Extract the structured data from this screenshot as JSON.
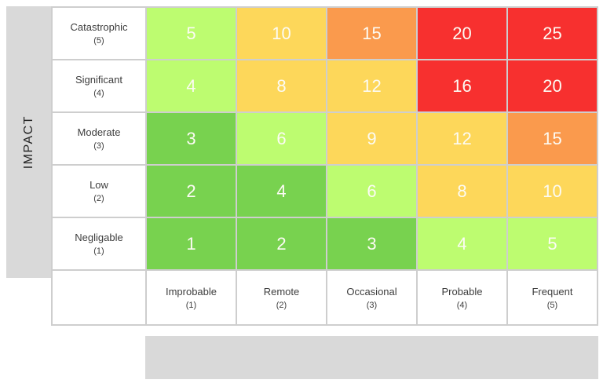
{
  "colors": {
    "green": "#78d24f",
    "light_green": "#bdfc70",
    "yellow": "#fdd75a",
    "orange": "#fa9a4d",
    "red": "#f7302f",
    "grid_line": "#cecece",
    "panel_gray": "#d9d9d9",
    "header_text": "#3d3d3d",
    "axis_text": "#262626",
    "cell_text": "#fcfbf4"
  },
  "chart_data": {
    "type": "heatmap",
    "title": "",
    "xlabel": "",
    "ylabel": "IMPACT",
    "legend": "none",
    "grid": true,
    "rows": [
      {
        "label": "Catastrophic",
        "scale": "(5)"
      },
      {
        "label": "Significant",
        "scale": "(4)"
      },
      {
        "label": "Moderate",
        "scale": "(3)"
      },
      {
        "label": "Low",
        "scale": "(2)"
      },
      {
        "label": "Negligable",
        "scale": "(1)"
      }
    ],
    "columns": [
      {
        "label": "Improbable",
        "scale": "(1)"
      },
      {
        "label": "Remote",
        "scale": "(2)"
      },
      {
        "label": "Occasional",
        "scale": "(3)"
      },
      {
        "label": "Probable",
        "scale": "(4)"
      },
      {
        "label": "Frequent",
        "scale": "(5)"
      }
    ],
    "values": [
      [
        5,
        10,
        15,
        20,
        25
      ],
      [
        4,
        8,
        12,
        16,
        20
      ],
      [
        3,
        6,
        9,
        12,
        15
      ],
      [
        2,
        4,
        6,
        8,
        10
      ],
      [
        1,
        2,
        3,
        4,
        5
      ]
    ],
    "cell_colors": [
      [
        "light_green",
        "yellow",
        "orange",
        "red",
        "red"
      ],
      [
        "light_green",
        "yellow",
        "yellow",
        "red",
        "red"
      ],
      [
        "green",
        "light_green",
        "yellow",
        "yellow",
        "orange"
      ],
      [
        "green",
        "green",
        "light_green",
        "yellow",
        "yellow"
      ],
      [
        "green",
        "green",
        "green",
        "light_green",
        "light_green"
      ]
    ]
  }
}
